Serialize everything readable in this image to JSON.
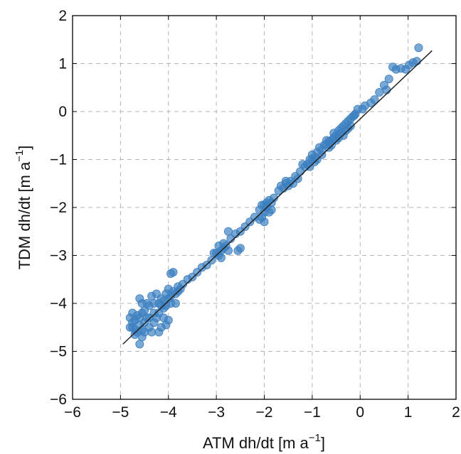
{
  "chart_data": {
    "type": "scatter",
    "xlabel": {
      "main": "ATM dh/dt [m a",
      "sup": "−1",
      "close": "]"
    },
    "ylabel": {
      "main": "TDM dh/dt [m a",
      "sup": "−1",
      "close": "]"
    },
    "xlim": [
      -6,
      2
    ],
    "ylim": [
      -6,
      2
    ],
    "xticks": [
      -6,
      -5,
      -4,
      -3,
      -2,
      -1,
      0,
      1,
      2
    ],
    "yticks": [
      -6,
      -5,
      -4,
      -3,
      -2,
      -1,
      0,
      1,
      2
    ],
    "xtick_labels": [
      "−6",
      "−5",
      "−4",
      "−3",
      "−2",
      "−1",
      "0",
      "1",
      "2"
    ],
    "ytick_labels": [
      "−6",
      "−5",
      "−4",
      "−3",
      "−2",
      "−1",
      "0",
      "1",
      "2"
    ],
    "grid": true,
    "marker_color": "#3b7fc0",
    "line_color": "#222222",
    "fit_line": {
      "x": [
        -4.95,
        1.5
      ],
      "y": [
        -4.85,
        1.27
      ]
    },
    "points": [
      [
        1.22,
        1.33
      ],
      [
        1.18,
        1.05
      ],
      [
        1.1,
        1.02
      ],
      [
        1.02,
        0.97
      ],
      [
        0.95,
        0.88
      ],
      [
        0.85,
        0.9
      ],
      [
        0.75,
        0.88
      ],
      [
        0.68,
        0.93
      ],
      [
        0.6,
        0.68
      ],
      [
        0.5,
        0.55
      ],
      [
        0.4,
        0.4
      ],
      [
        0.55,
        0.45
      ],
      [
        0.3,
        0.25
      ],
      [
        0.22,
        0.18
      ],
      [
        0.1,
        0.12
      ],
      [
        0.05,
        0.05
      ],
      [
        -0.05,
        0.05
      ],
      [
        -0.1,
        -0.05
      ],
      [
        -0.15,
        -0.1
      ],
      [
        -0.2,
        -0.15
      ],
      [
        -0.25,
        -0.2
      ],
      [
        -0.3,
        -0.25
      ],
      [
        -0.35,
        -0.3
      ],
      [
        -0.4,
        -0.35
      ],
      [
        -0.12,
        -0.08
      ],
      [
        -0.2,
        -0.3
      ],
      [
        -0.3,
        -0.4
      ],
      [
        -0.4,
        -0.45
      ],
      [
        -0.45,
        -0.4
      ],
      [
        -0.5,
        -0.5
      ],
      [
        -0.55,
        -0.55
      ],
      [
        -0.6,
        -0.6
      ],
      [
        -0.65,
        -0.62
      ],
      [
        -0.7,
        -0.68
      ],
      [
        -0.75,
        -0.7
      ],
      [
        -0.8,
        -0.8
      ],
      [
        -0.85,
        -0.75
      ],
      [
        -0.9,
        -0.85
      ],
      [
        -0.5,
        -0.6
      ],
      [
        -0.6,
        -0.7
      ],
      [
        -0.7,
        -0.6
      ],
      [
        -0.8,
        -0.9
      ],
      [
        -0.55,
        -0.45
      ],
      [
        -0.65,
        -0.75
      ],
      [
        -0.45,
        -0.55
      ],
      [
        -0.35,
        -0.5
      ],
      [
        -0.25,
        -0.35
      ],
      [
        -0.95,
        -0.95
      ],
      [
        -1.0,
        -1.0
      ],
      [
        -1.05,
        -1.0
      ],
      [
        -1.1,
        -1.1
      ],
      [
        -1.15,
        -1.15
      ],
      [
        -1.2,
        -1.1
      ],
      [
        -0.95,
        -1.05
      ],
      [
        -1.05,
        -1.15
      ],
      [
        -1.0,
        -0.9
      ],
      [
        -0.9,
        -1.0
      ],
      [
        -1.25,
        -1.25
      ],
      [
        -1.35,
        -1.35
      ],
      [
        -1.45,
        -1.45
      ],
      [
        -1.5,
        -1.55
      ],
      [
        -1.55,
        -1.5
      ],
      [
        -1.6,
        -1.6
      ],
      [
        -1.7,
        -1.65
      ],
      [
        -1.3,
        -1.4
      ],
      [
        -1.4,
        -1.5
      ],
      [
        -1.55,
        -1.45
      ],
      [
        -1.65,
        -1.55
      ],
      [
        -1.8,
        -1.8
      ],
      [
        -1.85,
        -1.9
      ],
      [
        -1.9,
        -1.85
      ],
      [
        -1.95,
        -2.0
      ],
      [
        -2.0,
        -1.95
      ],
      [
        -2.0,
        -2.1
      ],
      [
        -2.05,
        -2.2
      ],
      [
        -2.1,
        -2.05
      ],
      [
        -1.9,
        -2.1
      ],
      [
        -1.95,
        -1.9
      ],
      [
        -2.1,
        -2.25
      ],
      [
        -2.0,
        -2.3
      ],
      [
        -1.85,
        -2.05
      ],
      [
        -2.05,
        -1.95
      ],
      [
        -2.2,
        -2.2
      ],
      [
        -2.3,
        -2.3
      ],
      [
        -2.4,
        -2.4
      ],
      [
        -2.5,
        -2.5
      ],
      [
        -2.6,
        -2.55
      ],
      [
        -2.7,
        -2.65
      ],
      [
        -2.8,
        -2.8
      ],
      [
        -2.85,
        -2.85
      ],
      [
        -2.9,
        -2.9
      ],
      [
        -2.95,
        -3.0
      ],
      [
        -3.0,
        -2.95
      ],
      [
        -2.85,
        -2.75
      ],
      [
        -2.95,
        -2.8
      ],
      [
        -2.75,
        -2.9
      ],
      [
        -2.55,
        -2.9
      ],
      [
        -2.5,
        -2.85
      ],
      [
        -2.75,
        -2.5
      ],
      [
        -2.9,
        -3.05
      ],
      [
        -3.05,
        -2.95
      ],
      [
        -3.1,
        -3.1
      ],
      [
        -3.2,
        -3.2
      ],
      [
        -3.3,
        -3.25
      ],
      [
        -3.4,
        -3.35
      ],
      [
        -3.5,
        -3.45
      ],
      [
        -3.6,
        -3.5
      ],
      [
        -3.7,
        -3.6
      ],
      [
        -3.75,
        -3.7
      ],
      [
        -3.8,
        -3.65
      ],
      [
        -3.85,
        -3.8
      ],
      [
        -3.9,
        -3.75
      ],
      [
        -3.95,
        -3.85
      ],
      [
        -4.0,
        -3.9
      ],
      [
        -3.95,
        -4.0
      ],
      [
        -4.05,
        -3.8
      ],
      [
        -4.1,
        -3.95
      ],
      [
        -4.15,
        -3.9
      ],
      [
        -4.2,
        -4.0
      ],
      [
        -3.9,
        -3.35
      ],
      [
        -3.95,
        -3.38
      ],
      [
        -4.0,
        -3.7
      ],
      [
        -3.85,
        -4.0
      ],
      [
        -3.8,
        -3.75
      ],
      [
        -4.05,
        -4.05
      ],
      [
        -4.1,
        -4.1
      ],
      [
        -4.15,
        -4.05
      ],
      [
        -4.25,
        -3.8
      ],
      [
        -4.3,
        -4.0
      ],
      [
        -4.35,
        -3.85
      ],
      [
        -4.4,
        -4.05
      ],
      [
        -4.2,
        -4.2
      ],
      [
        -4.25,
        -4.3
      ],
      [
        -4.3,
        -4.2
      ],
      [
        -4.1,
        -4.3
      ],
      [
        -4.05,
        -4.45
      ],
      [
        -4.0,
        -4.35
      ],
      [
        -4.15,
        -4.5
      ],
      [
        -4.2,
        -4.6
      ],
      [
        -4.3,
        -4.4
      ],
      [
        -4.45,
        -4.0
      ],
      [
        -4.5,
        -4.15
      ],
      [
        -4.55,
        -4.2
      ],
      [
        -4.6,
        -4.3
      ],
      [
        -4.65,
        -4.25
      ],
      [
        -4.7,
        -4.35
      ],
      [
        -4.75,
        -4.4
      ],
      [
        -4.8,
        -4.5
      ],
      [
        -4.75,
        -4.2
      ],
      [
        -4.8,
        -4.3
      ],
      [
        -4.7,
        -4.55
      ],
      [
        -4.65,
        -4.6
      ],
      [
        -4.6,
        -4.45
      ],
      [
        -4.55,
        -4.55
      ],
      [
        -4.5,
        -4.4
      ],
      [
        -4.45,
        -4.3
      ],
      [
        -4.4,
        -4.5
      ],
      [
        -4.6,
        -4.85
      ],
      [
        -4.55,
        -4.7
      ],
      [
        -4.7,
        -4.65
      ],
      [
        -4.75,
        -4.5
      ],
      [
        -4.5,
        -4.6
      ],
      [
        -4.35,
        -4.6
      ],
      [
        -4.4,
        -4.3
      ],
      [
        -4.55,
        -4.0
      ],
      [
        -4.6,
        -3.9
      ]
    ]
  }
}
